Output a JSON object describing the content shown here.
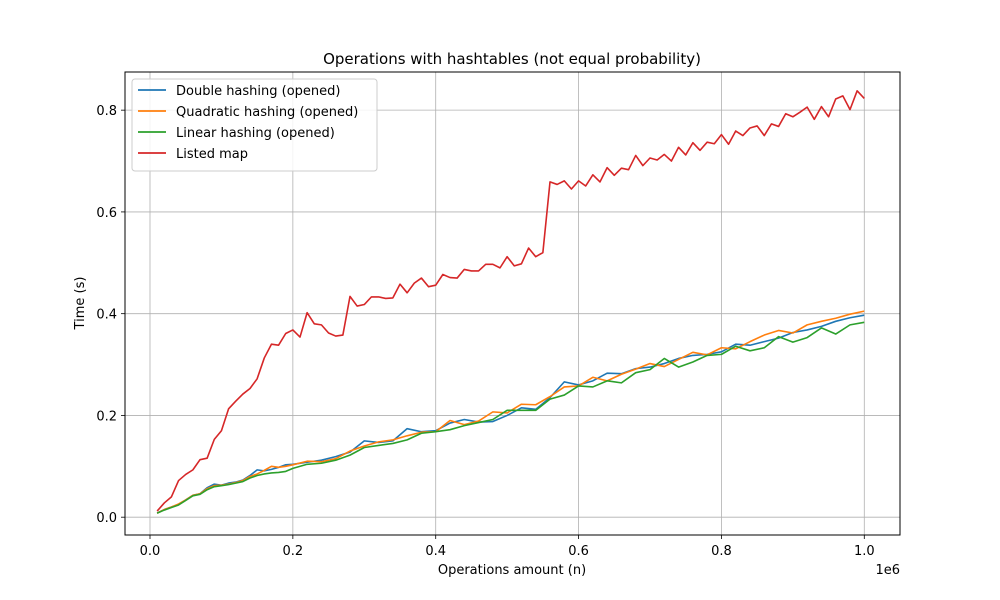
{
  "chart_data": {
    "type": "line",
    "title": "Operations with hashtables (not equal probability)",
    "xlabel": "Operations amount (n)",
    "ylabel": "Time (s)",
    "x_offset_label": "1e6",
    "xlim": [
      -35000,
      1050000
    ],
    "ylim": [
      -0.035,
      0.875
    ],
    "x_ticks": [
      0,
      200000,
      400000,
      600000,
      800000,
      1000000
    ],
    "x_tick_labels": [
      "0.0",
      "0.2",
      "0.4",
      "0.6",
      "0.8",
      "1.0"
    ],
    "y_ticks": [
      0.0,
      0.2,
      0.4,
      0.6,
      0.8
    ],
    "y_tick_labels": [
      "0.0",
      "0.2",
      "0.4",
      "0.6",
      "0.8"
    ],
    "grid": true,
    "legend_position": "top-left",
    "series": [
      {
        "name": "Double hashing (opened)",
        "color": "#1f77b4",
        "points": [
          [
            10000,
            0.008
          ],
          [
            20000,
            0.015
          ],
          [
            30000,
            0.02
          ],
          [
            40000,
            0.025
          ],
          [
            50000,
            0.034
          ],
          [
            60000,
            0.043
          ],
          [
            70000,
            0.046
          ],
          [
            80000,
            0.058
          ],
          [
            90000,
            0.065
          ],
          [
            100000,
            0.063
          ],
          [
            110000,
            0.067
          ],
          [
            120000,
            0.069
          ],
          [
            130000,
            0.073
          ],
          [
            140000,
            0.082
          ],
          [
            150000,
            0.093
          ],
          [
            160000,
            0.091
          ],
          [
            170000,
            0.094
          ],
          [
            180000,
            0.098
          ],
          [
            190000,
            0.103
          ],
          [
            200000,
            0.104
          ],
          [
            220000,
            0.108
          ],
          [
            240000,
            0.112
          ],
          [
            260000,
            0.119
          ],
          [
            280000,
            0.128
          ],
          [
            300000,
            0.15
          ],
          [
            320000,
            0.147
          ],
          [
            340000,
            0.15
          ],
          [
            360000,
            0.174
          ],
          [
            380000,
            0.168
          ],
          [
            400000,
            0.17
          ],
          [
            420000,
            0.185
          ],
          [
            440000,
            0.192
          ],
          [
            460000,
            0.187
          ],
          [
            480000,
            0.188
          ],
          [
            500000,
            0.2
          ],
          [
            520000,
            0.215
          ],
          [
            540000,
            0.212
          ],
          [
            560000,
            0.235
          ],
          [
            580000,
            0.266
          ],
          [
            600000,
            0.26
          ],
          [
            620000,
            0.268
          ],
          [
            640000,
            0.283
          ],
          [
            660000,
            0.282
          ],
          [
            680000,
            0.292
          ],
          [
            700000,
            0.295
          ],
          [
            720000,
            0.302
          ],
          [
            740000,
            0.312
          ],
          [
            760000,
            0.318
          ],
          [
            780000,
            0.32
          ],
          [
            800000,
            0.325
          ],
          [
            820000,
            0.34
          ],
          [
            840000,
            0.338
          ],
          [
            860000,
            0.345
          ],
          [
            880000,
            0.352
          ],
          [
            900000,
            0.363
          ],
          [
            920000,
            0.368
          ],
          [
            940000,
            0.375
          ],
          [
            960000,
            0.385
          ],
          [
            980000,
            0.392
          ],
          [
            1000000,
            0.397
          ]
        ]
      },
      {
        "name": "Quadratic hashing (opened)",
        "color": "#ff7f0e",
        "points": [
          [
            10000,
            0.008
          ],
          [
            20000,
            0.015
          ],
          [
            30000,
            0.02
          ],
          [
            40000,
            0.026
          ],
          [
            50000,
            0.034
          ],
          [
            60000,
            0.043
          ],
          [
            70000,
            0.046
          ],
          [
            80000,
            0.056
          ],
          [
            90000,
            0.062
          ],
          [
            100000,
            0.063
          ],
          [
            110000,
            0.065
          ],
          [
            120000,
            0.068
          ],
          [
            130000,
            0.072
          ],
          [
            140000,
            0.08
          ],
          [
            150000,
            0.085
          ],
          [
            160000,
            0.092
          ],
          [
            170000,
            0.1
          ],
          [
            180000,
            0.098
          ],
          [
            190000,
            0.1
          ],
          [
            200000,
            0.103
          ],
          [
            220000,
            0.11
          ],
          [
            240000,
            0.109
          ],
          [
            260000,
            0.115
          ],
          [
            280000,
            0.13
          ],
          [
            300000,
            0.14
          ],
          [
            320000,
            0.148
          ],
          [
            340000,
            0.152
          ],
          [
            360000,
            0.16
          ],
          [
            380000,
            0.167
          ],
          [
            400000,
            0.168
          ],
          [
            420000,
            0.19
          ],
          [
            440000,
            0.182
          ],
          [
            460000,
            0.189
          ],
          [
            480000,
            0.207
          ],
          [
            500000,
            0.205
          ],
          [
            520000,
            0.222
          ],
          [
            540000,
            0.221
          ],
          [
            560000,
            0.237
          ],
          [
            580000,
            0.256
          ],
          [
            600000,
            0.258
          ],
          [
            620000,
            0.275
          ],
          [
            640000,
            0.268
          ],
          [
            660000,
            0.281
          ],
          [
            680000,
            0.291
          ],
          [
            700000,
            0.302
          ],
          [
            720000,
            0.296
          ],
          [
            740000,
            0.31
          ],
          [
            760000,
            0.324
          ],
          [
            780000,
            0.319
          ],
          [
            800000,
            0.333
          ],
          [
            820000,
            0.331
          ],
          [
            840000,
            0.345
          ],
          [
            860000,
            0.358
          ],
          [
            880000,
            0.367
          ],
          [
            900000,
            0.362
          ],
          [
            920000,
            0.378
          ],
          [
            940000,
            0.385
          ],
          [
            960000,
            0.391
          ],
          [
            980000,
            0.399
          ],
          [
            1000000,
            0.405
          ]
        ]
      },
      {
        "name": "Linear hashing (opened)",
        "color": "#2ca02c",
        "points": [
          [
            10000,
            0.008
          ],
          [
            20000,
            0.014
          ],
          [
            30000,
            0.019
          ],
          [
            40000,
            0.024
          ],
          [
            50000,
            0.033
          ],
          [
            60000,
            0.042
          ],
          [
            70000,
            0.045
          ],
          [
            80000,
            0.054
          ],
          [
            90000,
            0.06
          ],
          [
            100000,
            0.062
          ],
          [
            110000,
            0.064
          ],
          [
            120000,
            0.067
          ],
          [
            130000,
            0.07
          ],
          [
            140000,
            0.077
          ],
          [
            150000,
            0.082
          ],
          [
            160000,
            0.085
          ],
          [
            170000,
            0.087
          ],
          [
            180000,
            0.088
          ],
          [
            190000,
            0.09
          ],
          [
            200000,
            0.096
          ],
          [
            220000,
            0.104
          ],
          [
            240000,
            0.106
          ],
          [
            260000,
            0.112
          ],
          [
            280000,
            0.122
          ],
          [
            300000,
            0.137
          ],
          [
            320000,
            0.141
          ],
          [
            340000,
            0.145
          ],
          [
            360000,
            0.152
          ],
          [
            380000,
            0.165
          ],
          [
            400000,
            0.168
          ],
          [
            420000,
            0.172
          ],
          [
            440000,
            0.18
          ],
          [
            460000,
            0.186
          ],
          [
            480000,
            0.192
          ],
          [
            500000,
            0.21
          ],
          [
            520000,
            0.21
          ],
          [
            540000,
            0.21
          ],
          [
            560000,
            0.232
          ],
          [
            580000,
            0.24
          ],
          [
            600000,
            0.258
          ],
          [
            620000,
            0.256
          ],
          [
            640000,
            0.268
          ],
          [
            660000,
            0.264
          ],
          [
            680000,
            0.284
          ],
          [
            700000,
            0.29
          ],
          [
            720000,
            0.312
          ],
          [
            740000,
            0.295
          ],
          [
            760000,
            0.305
          ],
          [
            780000,
            0.318
          ],
          [
            800000,
            0.32
          ],
          [
            820000,
            0.336
          ],
          [
            840000,
            0.327
          ],
          [
            860000,
            0.333
          ],
          [
            880000,
            0.355
          ],
          [
            900000,
            0.344
          ],
          [
            920000,
            0.353
          ],
          [
            940000,
            0.372
          ],
          [
            960000,
            0.36
          ],
          [
            980000,
            0.378
          ],
          [
            1000000,
            0.383
          ]
        ]
      },
      {
        "name": "Listed map",
        "color": "#d62728",
        "points": [
          [
            10000,
            0.012
          ],
          [
            20000,
            0.028
          ],
          [
            30000,
            0.04
          ],
          [
            40000,
            0.072
          ],
          [
            50000,
            0.084
          ],
          [
            60000,
            0.093
          ],
          [
            70000,
            0.113
          ],
          [
            80000,
            0.116
          ],
          [
            90000,
            0.153
          ],
          [
            100000,
            0.17
          ],
          [
            110000,
            0.213
          ],
          [
            120000,
            0.228
          ],
          [
            130000,
            0.242
          ],
          [
            140000,
            0.253
          ],
          [
            150000,
            0.272
          ],
          [
            160000,
            0.313
          ],
          [
            170000,
            0.34
          ],
          [
            180000,
            0.338
          ],
          [
            190000,
            0.361
          ],
          [
            200000,
            0.368
          ],
          [
            210000,
            0.354
          ],
          [
            220000,
            0.402
          ],
          [
            230000,
            0.38
          ],
          [
            240000,
            0.378
          ],
          [
            250000,
            0.362
          ],
          [
            260000,
            0.356
          ],
          [
            270000,
            0.358
          ],
          [
            280000,
            0.434
          ],
          [
            290000,
            0.415
          ],
          [
            300000,
            0.418
          ],
          [
            310000,
            0.433
          ],
          [
            320000,
            0.433
          ],
          [
            330000,
            0.43
          ],
          [
            340000,
            0.431
          ],
          [
            350000,
            0.458
          ],
          [
            360000,
            0.441
          ],
          [
            370000,
            0.46
          ],
          [
            380000,
            0.47
          ],
          [
            390000,
            0.453
          ],
          [
            400000,
            0.456
          ],
          [
            410000,
            0.477
          ],
          [
            420000,
            0.471
          ],
          [
            430000,
            0.47
          ],
          [
            440000,
            0.487
          ],
          [
            450000,
            0.484
          ],
          [
            460000,
            0.484
          ],
          [
            470000,
            0.497
          ],
          [
            480000,
            0.497
          ],
          [
            490000,
            0.49
          ],
          [
            500000,
            0.512
          ],
          [
            510000,
            0.494
          ],
          [
            520000,
            0.498
          ],
          [
            530000,
            0.529
          ],
          [
            540000,
            0.512
          ],
          [
            550000,
            0.52
          ],
          [
            560000,
            0.659
          ],
          [
            570000,
            0.654
          ],
          [
            580000,
            0.661
          ],
          [
            590000,
            0.645
          ],
          [
            600000,
            0.661
          ],
          [
            610000,
            0.651
          ],
          [
            620000,
            0.673
          ],
          [
            630000,
            0.659
          ],
          [
            640000,
            0.687
          ],
          [
            650000,
            0.672
          ],
          [
            660000,
            0.686
          ],
          [
            670000,
            0.683
          ],
          [
            680000,
            0.711
          ],
          [
            690000,
            0.691
          ],
          [
            700000,
            0.706
          ],
          [
            710000,
            0.702
          ],
          [
            720000,
            0.713
          ],
          [
            730000,
            0.7
          ],
          [
            740000,
            0.727
          ],
          [
            750000,
            0.712
          ],
          [
            760000,
            0.736
          ],
          [
            770000,
            0.721
          ],
          [
            780000,
            0.737
          ],
          [
            790000,
            0.734
          ],
          [
            800000,
            0.752
          ],
          [
            810000,
            0.733
          ],
          [
            820000,
            0.759
          ],
          [
            830000,
            0.75
          ],
          [
            840000,
            0.765
          ],
          [
            850000,
            0.769
          ],
          [
            860000,
            0.75
          ],
          [
            870000,
            0.773
          ],
          [
            880000,
            0.768
          ],
          [
            890000,
            0.793
          ],
          [
            900000,
            0.787
          ],
          [
            910000,
            0.796
          ],
          [
            920000,
            0.806
          ],
          [
            930000,
            0.782
          ],
          [
            940000,
            0.807
          ],
          [
            950000,
            0.787
          ],
          [
            960000,
            0.822
          ],
          [
            970000,
            0.828
          ],
          [
            980000,
            0.801
          ],
          [
            990000,
            0.838
          ],
          [
            1000000,
            0.823
          ]
        ]
      }
    ]
  }
}
